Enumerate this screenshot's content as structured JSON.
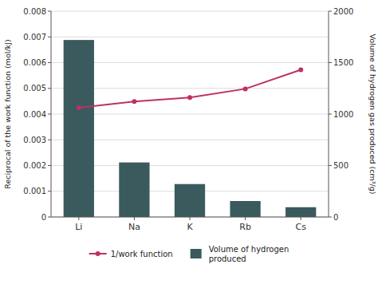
{
  "chart_data": {
    "type": "bar",
    "categories": [
      "Li",
      "Na",
      "K",
      "Rb",
      "Cs"
    ],
    "series": [
      {
        "name": "Volume of hydrogen\nproduced",
        "type": "bar",
        "color": "#3a5a5e",
        "values": [
          0.00688,
          0.00212,
          0.00128,
          0.00062,
          0.00038
        ]
      },
      {
        "name": "1/work function",
        "type": "line",
        "axis": "y2",
        "color": "#c03060",
        "marker": "circle",
        "values": [
          1062,
          1122,
          1160,
          1245,
          1430
        ]
      }
    ],
    "ylabel": "Reciprocal of the work function (mol/kJ)",
    "y2label": "Volume of hydrogen gas produced (cm³/g)",
    "ylim": [
      0,
      0.008
    ],
    "yticks": [
      0,
      0.001,
      0.002,
      0.003,
      0.004,
      0.005,
      0.006,
      0.007,
      0.008
    ],
    "y2lim": [
      0,
      2000
    ],
    "y2ticks": [
      0,
      500,
      1000,
      1500,
      2000
    ],
    "grid": true,
    "legend": "bottom"
  }
}
